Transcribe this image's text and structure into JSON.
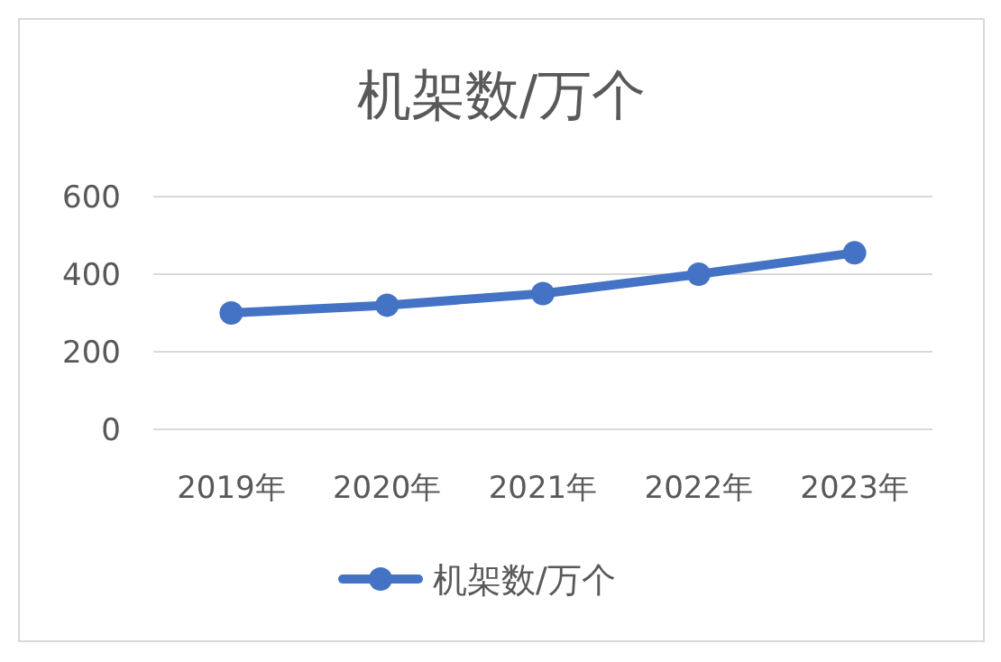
{
  "chart_data": {
    "type": "line",
    "title": "机架数/万个",
    "categories": [
      "2019年",
      "2020年",
      "2021年",
      "2022年",
      "2023年"
    ],
    "series": [
      {
        "name": "机架数/万个",
        "color": "#4472c4",
        "values": [
          300,
          320,
          350,
          400,
          455
        ]
      }
    ],
    "ylim": [
      0,
      600
    ],
    "yticks": [
      0,
      200,
      400,
      600
    ],
    "grid": "y",
    "legend": "bottom",
    "marker": "circle",
    "line_style": "solid"
  }
}
